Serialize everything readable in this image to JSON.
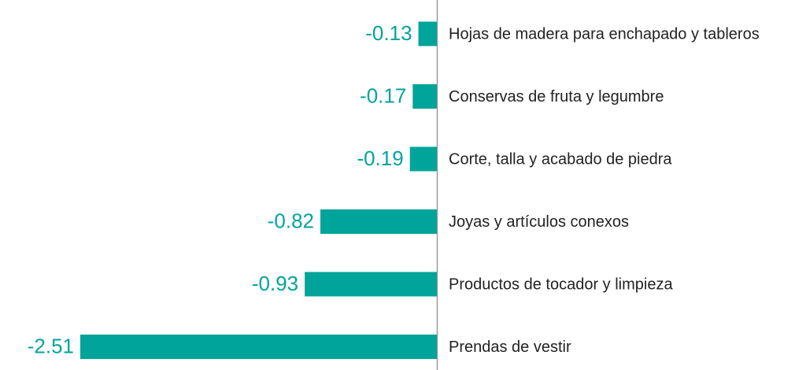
{
  "chart_data": {
    "type": "hbar",
    "categories": [
      "Hojas de madera para enchapado y tableros",
      "Conservas de fruta y legumbre",
      "Corte, talla y acabado de piedra",
      "Joyas y artículos conexos",
      "Productos de tocador y limpieza",
      "Prendas de vestir"
    ],
    "values": [
      -0.13,
      -0.17,
      -0.19,
      -0.82,
      -0.93,
      -2.51
    ],
    "color": "#00a49a"
  }
}
